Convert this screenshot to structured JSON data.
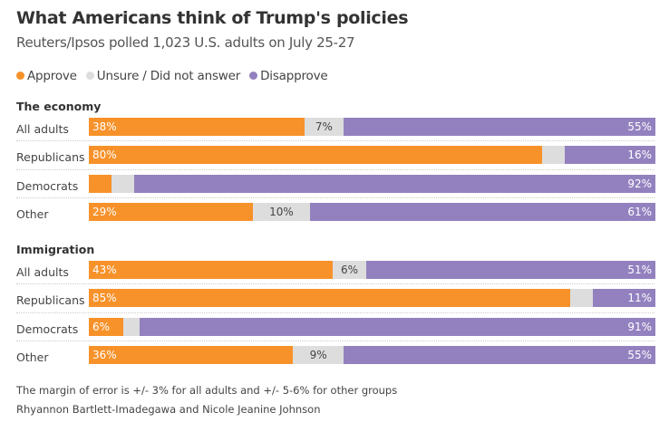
{
  "title": "What Americans think of Trump's policies",
  "subtitle": "Reuters/Ipsos polled 1,023 U.S. adults on July 25-27",
  "legend": [
    {
      "label": "Approve",
      "color": "#f7922a"
    },
    {
      "label": "Unsure / Did not answer",
      "color": "#dddddd"
    },
    {
      "label": "Disapprove",
      "color": "#9381bf"
    }
  ],
  "footnote": "The margin of error is +/- 3% for all adults and +/- 5-6% for other groups",
  "credit": "Rhyannon Bartlett-Imadegawa and Nicole Jeanine Johnson",
  "chart_data": {
    "type": "bar",
    "orientation": "horizontal-stacked-100",
    "title": "What Americans think of Trump's policies",
    "series_names": [
      "Approve",
      "Unsure / Did not answer",
      "Disapprove"
    ],
    "groups": [
      {
        "name": "The economy",
        "rows": [
          {
            "label": "All adults",
            "values": [
              38,
              7,
              55
            ]
          },
          {
            "label": "Republicans",
            "values": [
              80,
              4,
              16
            ]
          },
          {
            "label": "Democrats",
            "values": [
              4,
              4,
              92
            ]
          },
          {
            "label": "Other",
            "values": [
              29,
              10,
              61
            ]
          }
        ]
      },
      {
        "name": "Immigration",
        "rows": [
          {
            "label": "All adults",
            "values": [
              43,
              6,
              51
            ]
          },
          {
            "label": "Republicans",
            "values": [
              85,
              4,
              11
            ]
          },
          {
            "label": "Democrats",
            "values": [
              6,
              3,
              91
            ]
          },
          {
            "label": "Other",
            "values": [
              36,
              9,
              55
            ]
          }
        ]
      }
    ],
    "xlim": [
      0,
      100
    ]
  }
}
